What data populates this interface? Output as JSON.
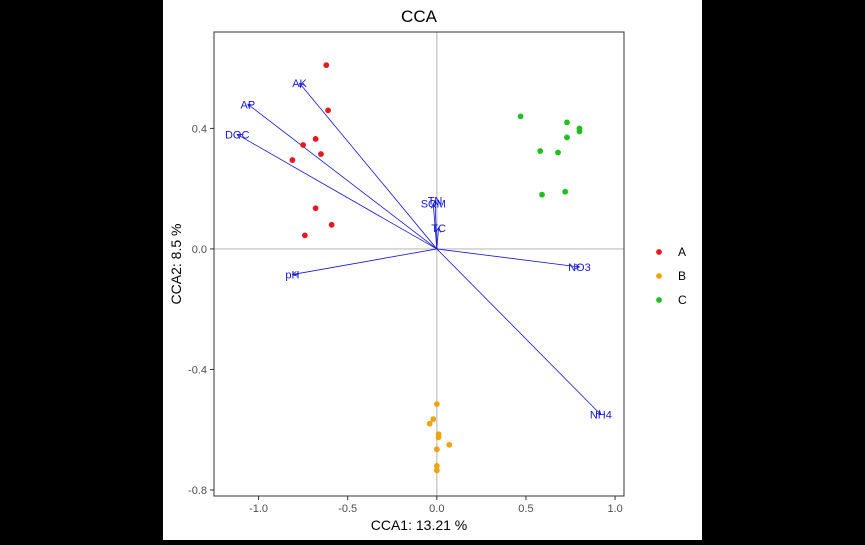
{
  "chart_data": {
    "type": "scatter",
    "title": "CCA",
    "xlabel": "CCA1: 13.21 %",
    "ylabel": "CCA2: 8.5 %",
    "xlim": [
      -1.25,
      1.05
    ],
    "ylim": [
      -0.82,
      0.72
    ],
    "x_ticks": [
      -1.0,
      -0.5,
      0.0,
      0.5,
      1.0
    ],
    "x_tick_labels": [
      "-1.0",
      "-0.5",
      "0.0",
      "0.5",
      "1.0"
    ],
    "y_ticks": [
      -0.8,
      -0.4,
      0.0,
      0.4
    ],
    "y_tick_labels": [
      "-0.8",
      "-0.4",
      "0.0",
      "0.4"
    ],
    "reference_lines": {
      "x": 0,
      "y": 0
    },
    "grid": false,
    "legend": {
      "placement": "right"
    },
    "series": [
      {
        "name": "A",
        "color": "#e41a1c",
        "points": [
          {
            "x": -0.62,
            "y": 0.61
          },
          {
            "x": -0.61,
            "y": 0.46
          },
          {
            "x": -0.68,
            "y": 0.365
          },
          {
            "x": -0.75,
            "y": 0.345
          },
          {
            "x": -0.65,
            "y": 0.315
          },
          {
            "x": -0.81,
            "y": 0.295
          },
          {
            "x": -0.68,
            "y": 0.135
          },
          {
            "x": -0.59,
            "y": 0.08
          },
          {
            "x": -0.74,
            "y": 0.045
          }
        ]
      },
      {
        "name": "B",
        "color": "#f0a30a",
        "points": [
          {
            "x": 0.0,
            "y": -0.515
          },
          {
            "x": -0.02,
            "y": -0.565
          },
          {
            "x": -0.04,
            "y": -0.58
          },
          {
            "x": 0.01,
            "y": -0.615
          },
          {
            "x": 0.01,
            "y": -0.625
          },
          {
            "x": 0.07,
            "y": -0.65
          },
          {
            "x": 0.0,
            "y": -0.665
          },
          {
            "x": 0.0,
            "y": -0.72
          },
          {
            "x": 0.0,
            "y": -0.735
          }
        ]
      },
      {
        "name": "C",
        "color": "#1fbf1f",
        "points": [
          {
            "x": 0.47,
            "y": 0.44
          },
          {
            "x": 0.73,
            "y": 0.42
          },
          {
            "x": 0.8,
            "y": 0.4
          },
          {
            "x": 0.8,
            "y": 0.39
          },
          {
            "x": 0.73,
            "y": 0.37
          },
          {
            "x": 0.58,
            "y": 0.325
          },
          {
            "x": 0.68,
            "y": 0.32
          },
          {
            "x": 0.72,
            "y": 0.19
          },
          {
            "x": 0.59,
            "y": 0.18
          }
        ]
      }
    ],
    "env_vectors": [
      {
        "name": "AK",
        "x": -0.77,
        "y": 0.55
      },
      {
        "name": "AP",
        "x": -1.06,
        "y": 0.48
      },
      {
        "name": "DOC",
        "x": -1.12,
        "y": 0.38
      },
      {
        "name": "TN",
        "x": -0.01,
        "y": 0.16
      },
      {
        "name": "SOM",
        "x": -0.02,
        "y": 0.15
      },
      {
        "name": "TC",
        "x": 0.01,
        "y": 0.07
      },
      {
        "name": "pH",
        "x": -0.81,
        "y": -0.085
      },
      {
        "name": "NO3",
        "x": 0.8,
        "y": -0.06
      },
      {
        "name": "NH4",
        "x": 0.92,
        "y": -0.55
      }
    ],
    "vector_color": "#1515d6"
  }
}
